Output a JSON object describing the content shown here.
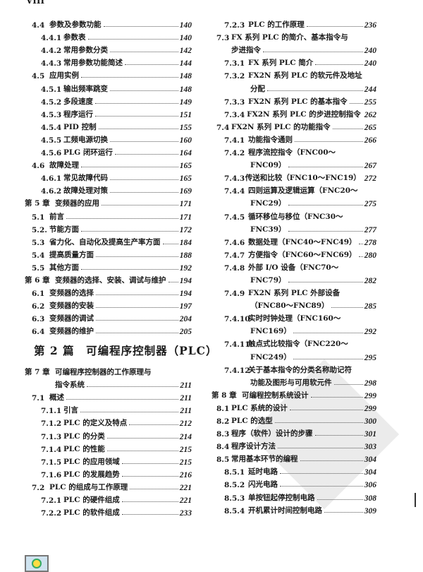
{
  "folio": "VIII",
  "part_heading": "第 2 篇　可编程序控制器（PLC）",
  "left_top": [
    {
      "level": 1,
      "num": "4.4",
      "title": "参数及参数功能",
      "page": "140"
    },
    {
      "level": 2,
      "num": "4.4.1",
      "title": "参数表",
      "page": "140"
    },
    {
      "level": 2,
      "num": "4.4.2",
      "title": "常用参数分类",
      "page": "142"
    },
    {
      "level": 2,
      "num": "4.4.3",
      "title": "常用参数功能简述",
      "page": "144"
    },
    {
      "level": 1,
      "num": "4.5",
      "title": "应用实例",
      "page": "148"
    },
    {
      "level": 2,
      "num": "4.5.1",
      "title": "输出频率跳变",
      "page": "148"
    },
    {
      "level": 2,
      "num": "4.5.2",
      "title": "多段速度",
      "page": "149"
    },
    {
      "level": 2,
      "num": "4.5.3",
      "title": "程序运行",
      "page": "151"
    },
    {
      "level": 2,
      "num": "4.5.4",
      "title": "PID 控制",
      "page": "155"
    },
    {
      "level": 2,
      "num": "4.5.5",
      "title": "工频电源切换",
      "page": "160"
    },
    {
      "level": 2,
      "num": "4.5.6",
      "title": "PLG 闭环运行",
      "page": "164"
    },
    {
      "level": 1,
      "num": "4.6",
      "title": "故障处理",
      "page": "165"
    },
    {
      "level": 2,
      "num": "4.6.1",
      "title": "常见故障代码",
      "page": "165"
    },
    {
      "level": 2,
      "num": "4.6.2",
      "title": "故障处理对策",
      "page": "169"
    },
    {
      "level": 0,
      "num": "第 5 章",
      "title": "变频器的应用",
      "page": "171"
    },
    {
      "level": 1,
      "num": "5.1",
      "title": "前言",
      "page": "171"
    },
    {
      "level": 1,
      "num": "5.2.",
      "title": "节能方面",
      "page": "172"
    },
    {
      "level": 1,
      "num": "5.3",
      "title": "省力化、自动化及提高生产率方面",
      "page": "184"
    },
    {
      "level": 1,
      "num": "5.4",
      "title": "提高质量方面",
      "page": "188"
    },
    {
      "level": 1,
      "num": "5.5",
      "title": "其他方面",
      "page": "192"
    },
    {
      "level": 0,
      "num": "第 6 章",
      "title": "变频器的选择、安装、调试与维护",
      "page": "194"
    },
    {
      "level": 1,
      "num": "6.1",
      "title": "变频器的选择",
      "page": "194"
    },
    {
      "level": 1,
      "num": "6.2",
      "title": "变频器的安装",
      "page": "197"
    },
    {
      "level": 1,
      "num": "6.3",
      "title": "变频器的调试",
      "page": "204"
    },
    {
      "level": 1,
      "num": "6.4",
      "title": "变频器的维护",
      "page": "205"
    }
  ],
  "left_bottom": [
    {
      "level": 0,
      "num": "第 7 章",
      "title": "可编程序控制器的工作原理与",
      "cont": "指令系统",
      "page": "211"
    },
    {
      "level": 1,
      "num": "7.1",
      "title": "概述",
      "page": "211"
    },
    {
      "level": 2,
      "num": "7.1.1",
      "title": "引言",
      "page": "211"
    },
    {
      "level": 2,
      "num": "7.1.2",
      "title": "PLC 的定义及特点",
      "page": "212"
    },
    {
      "level": 2,
      "num": "7.1.3",
      "title": "PLC 的分类",
      "page": "214"
    },
    {
      "level": 2,
      "num": "7.1.4",
      "title": "PLC 的性能",
      "page": "215"
    },
    {
      "level": 2,
      "num": "7.1.5",
      "title": "PLC 的应用领域",
      "page": "215"
    },
    {
      "level": 2,
      "num": "7.1.6",
      "title": "PLC 的发展趋势",
      "page": "216"
    },
    {
      "level": 1,
      "num": "7.2",
      "title": "PLC 的组成与工作原理",
      "page": "221"
    },
    {
      "level": 2,
      "num": "7.2.1",
      "title": "PLC 的硬件组成",
      "page": "221"
    },
    {
      "level": 2,
      "num": "7.2.2",
      "title": "PLC 的软件组成",
      "page": "233"
    }
  ],
  "right": [
    {
      "level": 2,
      "num": "7.2.3",
      "title": "PLC 的工作原理",
      "page": "236"
    },
    {
      "level": 1,
      "num": "7.3",
      "title": "FX 系列 PLC 的简介、基本指令与",
      "cont": "步进指令",
      "page": "240"
    },
    {
      "level": 2,
      "num": "7.3.1",
      "title": "FX 系列 PLC 简介",
      "page": "240"
    },
    {
      "level": 2,
      "num": "7.3.2",
      "title": "FX2N 系列 PLC 的软元件及地址",
      "cont": "分配",
      "page": "244"
    },
    {
      "level": 2,
      "num": "7.3.3",
      "title": "FX2N 系列 PLC 的基本指令",
      "page": "255"
    },
    {
      "level": 2,
      "num": "7.3.4",
      "title": "FX2N 系列 PLC 的步进控制指令",
      "page": "262"
    },
    {
      "level": 1,
      "num": "7.4",
      "title": "FX2N 系列 PLC 的功能指令",
      "page": "265"
    },
    {
      "level": 2,
      "num": "7.4.1",
      "title": "功能指令通则",
      "page": "266"
    },
    {
      "level": 2,
      "num": "7.4.2",
      "title": "程序流控指令（FNC00～",
      "cont": "FNC09）",
      "page": "267"
    },
    {
      "level": 2,
      "num": "7.4.3",
      "title": "传送和比较（FNC10～FNC19）",
      "page": "272"
    },
    {
      "level": 2,
      "num": "7.4.4",
      "title": "四则运算及逻辑运算（FNC20～",
      "cont": "FNC29）",
      "page": "275"
    },
    {
      "level": 2,
      "num": "7.4.5",
      "title": "循环移位与移位（FNC30～",
      "cont": "FNC39）",
      "page": "277"
    },
    {
      "level": 2,
      "num": "7.4.6",
      "title": "数据处理（FNC40～FNC49）",
      "page": "278"
    },
    {
      "level": 2,
      "num": "7.4.7",
      "title": "方便指令（FNC60～FNC69）",
      "page": "280"
    },
    {
      "level": 2,
      "num": "7.4.8",
      "title": "外部 I/O 设备（FNC70～",
      "cont": "FNC79）",
      "page": "282"
    },
    {
      "level": 2,
      "num": "7.4.9",
      "title": "FX2N 系列 PLC 外部设备",
      "cont": "（FNC80～FNC89）",
      "page": "285"
    },
    {
      "level": 2,
      "num": "7.4.10",
      "title": "实时时钟处理（FNC160～",
      "cont": "FNC169）",
      "page": "292"
    },
    {
      "level": 2,
      "num": "7.4.11",
      "title": "触点式比较指令（FNC220～",
      "cont": "FNC249）",
      "page": "295"
    },
    {
      "level": 2,
      "num": "7.4.12",
      "title": "关于基本指令的分类名称助记符",
      "cont": "功能及图形与可用软元件",
      "page": "298"
    },
    {
      "level": 0,
      "num": "第 8 章",
      "title": "可编程控制系统设计",
      "page": "299"
    },
    {
      "level": 1,
      "num": "8.1",
      "title": "PLC 系统的设计",
      "page": "299"
    },
    {
      "level": 1,
      "num": "8.2",
      "title": "PLC 的选型",
      "page": "300"
    },
    {
      "level": 1,
      "num": "8.3",
      "title": "程序（软件）设计的步骤",
      "page": "301"
    },
    {
      "level": 1,
      "num": "8.4",
      "title": "程序设计方法",
      "page": "303"
    },
    {
      "level": 1,
      "num": "8.5",
      "title": "常用基本环节的编程",
      "page": "304"
    },
    {
      "level": 2,
      "num": "8.5.1",
      "title": "延时电路",
      "page": "304"
    },
    {
      "level": 2,
      "num": "8.5.2",
      "title": "闪光电路",
      "page": "306"
    },
    {
      "level": 2,
      "num": "8.5.3",
      "title": "单按钮起停控制电路",
      "page": "308"
    },
    {
      "level": 2,
      "num": "8.5.4",
      "title": "开机累计时间控制电路",
      "page": "309"
    }
  ]
}
